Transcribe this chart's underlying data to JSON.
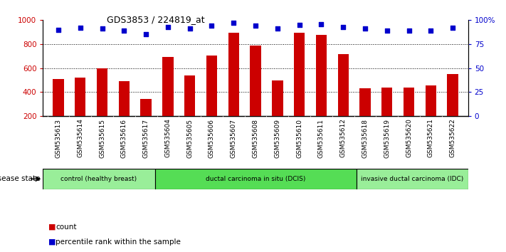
{
  "title": "GDS3853 / 224819_at",
  "samples": [
    "GSM535613",
    "GSM535614",
    "GSM535615",
    "GSM535616",
    "GSM535617",
    "GSM535604",
    "GSM535605",
    "GSM535606",
    "GSM535607",
    "GSM535608",
    "GSM535609",
    "GSM535610",
    "GSM535611",
    "GSM535612",
    "GSM535618",
    "GSM535619",
    "GSM535620",
    "GSM535621",
    "GSM535622"
  ],
  "counts": [
    510,
    520,
    595,
    490,
    340,
    695,
    540,
    705,
    895,
    790,
    495,
    895,
    875,
    715,
    430,
    435,
    435,
    455,
    550
  ],
  "percentile_ranks": [
    90,
    92,
    91,
    89,
    85,
    93,
    91,
    94,
    97,
    94,
    91,
    95,
    96,
    93,
    91,
    89,
    89,
    89,
    92
  ],
  "bar_color": "#CC0000",
  "dot_color": "#0000CC",
  "ylim_left": [
    200,
    1000
  ],
  "ylim_right": [
    0,
    100
  ],
  "yticks_left": [
    200,
    400,
    600,
    800,
    1000
  ],
  "ytick_labels_left": [
    "200",
    "400",
    "600",
    "800",
    "1000"
  ],
  "yticks_right": [
    0,
    25,
    50,
    75,
    100
  ],
  "ytick_labels_right": [
    "0",
    "25",
    "50",
    "75",
    "100%"
  ],
  "grid_values": [
    400,
    600,
    800
  ],
  "disease_groups": [
    {
      "label": "control (healthy breast)",
      "start": 0,
      "end": 5,
      "color": "#99EE99"
    },
    {
      "label": "ductal carcinoma in situ (DCIS)",
      "start": 5,
      "end": 14,
      "color": "#55DD55"
    },
    {
      "label": "invasive ductal carcinoma (IDC)",
      "start": 14,
      "end": 19,
      "color": "#99EE99"
    }
  ],
  "disease_state_label": "disease state",
  "legend_count_label": "count",
  "legend_pct_label": "percentile rank within the sample",
  "background_color": "#ffffff",
  "plot_bg_color": "#ffffff",
  "xticklabel_bg": "#DDDDDD"
}
